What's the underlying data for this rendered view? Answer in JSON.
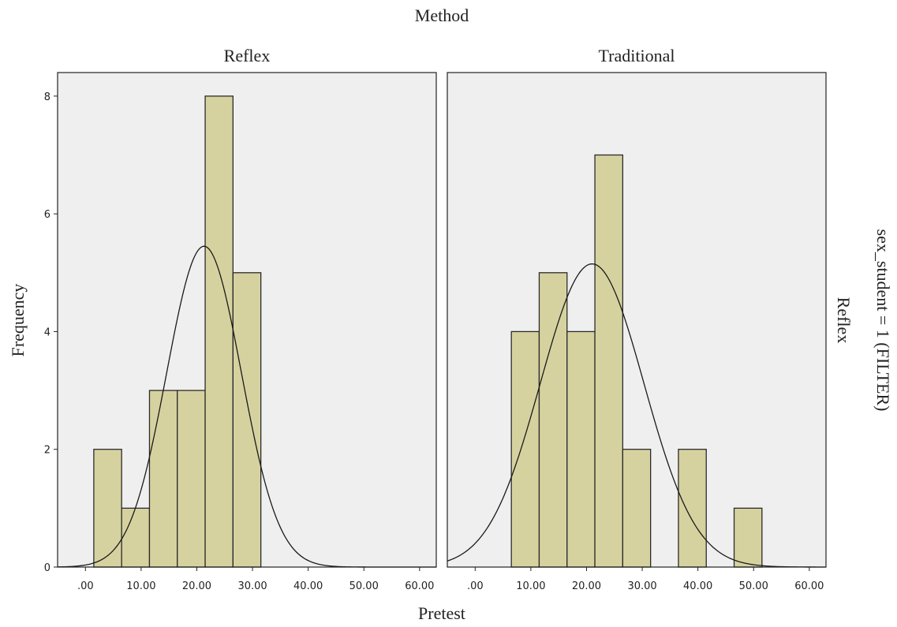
{
  "chart_data": {
    "type": "bar",
    "title": "Method",
    "xlabel": "Pretest",
    "ylabel": "Frequency",
    "row_strip_label": "Reflex",
    "row_filter_label": "sex_student = 1 (FILTER)",
    "xlim": [
      -5,
      63
    ],
    "ylim": [
      0,
      8.4
    ],
    "x_ticks": [
      0,
      10,
      20,
      30,
      40,
      50,
      60
    ],
    "x_tick_labels": [
      ".00",
      "10.00",
      "20.00",
      "30.00",
      "40.00",
      "50.00",
      "60.00"
    ],
    "y_ticks": [
      0,
      2,
      4,
      6,
      8
    ],
    "y_tick_labels": [
      "0",
      "2",
      "4",
      "6",
      "8"
    ],
    "panel_background": "#efefef",
    "bar_fill": "#d6d2a0",
    "bar_stroke": "#2b2b2b",
    "curve_color": "#1a1a1a",
    "panels": [
      {
        "label": "Reflex",
        "bins": [
          {
            "start": 1.5,
            "end": 6.5,
            "count": 2
          },
          {
            "start": 6.5,
            "end": 11.5,
            "count": 1
          },
          {
            "start": 11.5,
            "end": 16.5,
            "count": 3
          },
          {
            "start": 16.5,
            "end": 21.5,
            "count": 3
          },
          {
            "start": 21.5,
            "end": 26.5,
            "count": 8
          },
          {
            "start": 26.5,
            "end": 31.5,
            "count": 5
          }
        ],
        "normal_curve": {
          "mean": 21.3,
          "sd": 6.7,
          "peak": 5.45
        }
      },
      {
        "label": "Traditional",
        "bins": [
          {
            "start": 6.5,
            "end": 11.5,
            "count": 4
          },
          {
            "start": 11.5,
            "end": 16.5,
            "count": 5
          },
          {
            "start": 16.5,
            "end": 21.5,
            "count": 4
          },
          {
            "start": 21.5,
            "end": 26.5,
            "count": 7
          },
          {
            "start": 26.5,
            "end": 31.5,
            "count": 2
          },
          {
            "start": 36.5,
            "end": 41.5,
            "count": 2
          },
          {
            "start": 46.5,
            "end": 51.5,
            "count": 1
          }
        ],
        "normal_curve": {
          "mean": 21.0,
          "sd": 9.3,
          "peak": 5.15
        }
      }
    ]
  }
}
